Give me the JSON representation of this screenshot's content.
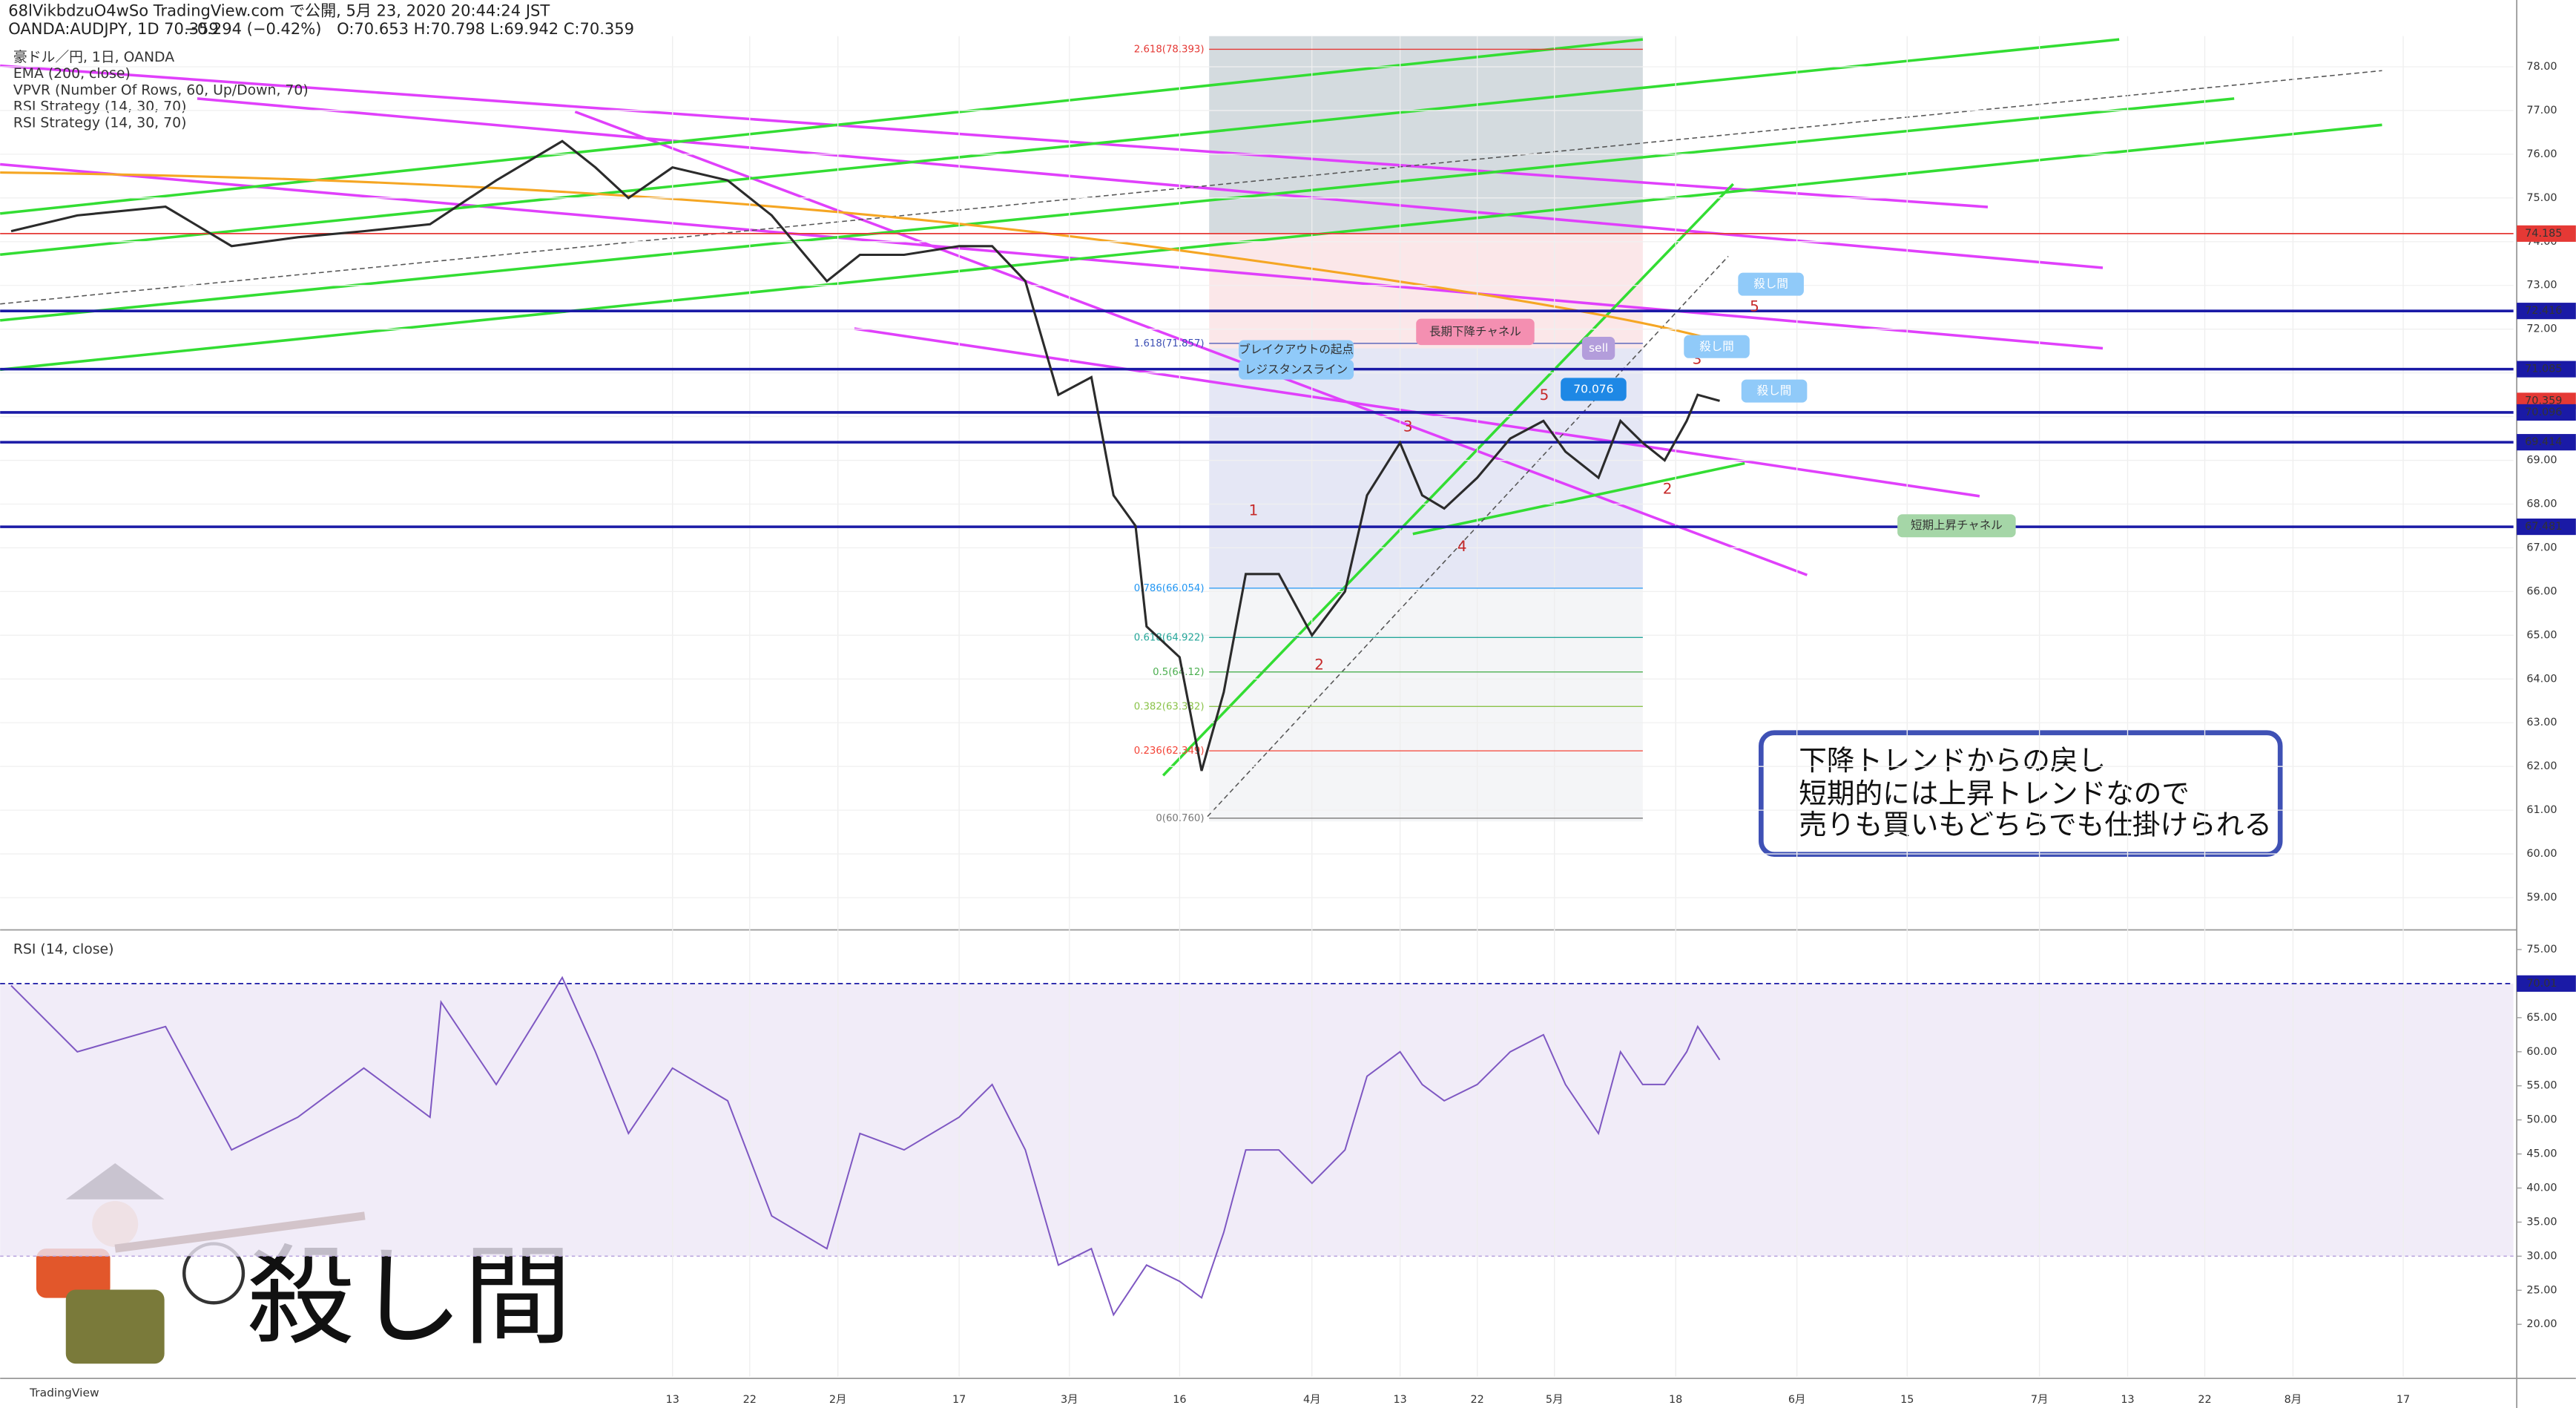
{
  "header": {
    "publisher": "68lVikbdzuO4wSo TradingView.com で公開, 5月 23, 2020 20:44:24 JST",
    "symbol": "OANDA:AUDJPY, 1D 70.359",
    "change": "−0.294 (−0.42%)",
    "ohlc": "O:70.653 H:70.798 L:69.942 C:70.359"
  },
  "indicators": [
    "豪ドル／円, 1日, OANDA",
    "EMA (200, close)",
    "VPVR (Number Of Rows, 60, Up/Down, 70)",
    "RSI Strategy (14, 30, 70)",
    "RSI Strategy (14, 30, 70)"
  ],
  "chart_data": [
    {
      "type": "line",
      "color": "#2b2b2b",
      "x": [
        1,
        7,
        15,
        21,
        27,
        33,
        39,
        45,
        51,
        54,
        57,
        61,
        66,
        70,
        75,
        78,
        82,
        87,
        90,
        93,
        96,
        99,
        101,
        103,
        104,
        107,
        109,
        111,
        113,
        116,
        119,
        122,
        124,
        127,
        129,
        131,
        134,
        137,
        140,
        142,
        145,
        147,
        149,
        151,
        153,
        154,
        156
      ],
      "values": [
        74.24,
        74.6,
        74.8,
        73.9,
        74.1,
        74.24,
        74.4,
        75.4,
        76.3,
        75.7,
        75.0,
        75.7,
        75.4,
        74.6,
        73.1,
        73.7,
        73.7,
        73.9,
        73.9,
        73.1,
        70.5,
        70.9,
        68.2,
        67.5,
        65.2,
        64.5,
        61.9,
        63.7,
        66.4,
        66.4,
        65.0,
        66.0,
        68.2,
        69.4,
        68.2,
        67.9,
        68.6,
        69.5,
        69.9,
        69.2,
        68.6,
        69.9,
        69.4,
        69.0,
        69.9,
        70.5,
        70.359
      ],
      "xlim": [
        0,
        228
      ],
      "xticks": [
        {
          "value": 61,
          "label": "13"
        },
        {
          "value": 68,
          "label": "22"
        },
        {
          "value": 76,
          "label": "2月"
        },
        {
          "value": 87,
          "label": "17"
        },
        {
          "value": 97,
          "label": "3月"
        },
        {
          "value": 107,
          "label": "16"
        },
        {
          "value": 119,
          "label": "4月"
        },
        {
          "value": 127,
          "label": "13"
        },
        {
          "value": 134,
          "label": "22"
        },
        {
          "value": 141,
          "label": "5月"
        },
        {
          "value": 152,
          "label": "18"
        },
        {
          "value": 163,
          "label": "6月"
        },
        {
          "value": 173,
          "label": "15"
        },
        {
          "value": 185,
          "label": "7月"
        },
        {
          "value": 193,
          "label": "13"
        },
        {
          "value": 200,
          "label": "22"
        },
        {
          "value": 208,
          "label": "8月"
        },
        {
          "value": 218,
          "label": "17"
        }
      ],
      "ylim": [
        58.3,
        78.7
      ],
      "yticks": [
        {
          "value": 59,
          "label": "59.00"
        },
        {
          "value": 60,
          "label": "60.00"
        },
        {
          "value": 61,
          "label": "61.00"
        },
        {
          "value": 62,
          "label": "62.00"
        },
        {
          "value": 63,
          "label": "63.00"
        },
        {
          "value": 64,
          "label": "64.00"
        },
        {
          "value": 65,
          "label": "65.00"
        },
        {
          "value": 66,
          "label": "66.00"
        },
        {
          "value": 67,
          "label": "67.00"
        },
        {
          "value": 68,
          "label": "68.00"
        },
        {
          "value": 69,
          "label": "69.00"
        },
        {
          "value": 70,
          "label": "70.00"
        },
        {
          "value": 71,
          "label": "71.00"
        },
        {
          "value": 72,
          "label": "72.00"
        },
        {
          "value": 73,
          "label": "73.00"
        },
        {
          "value": 74,
          "label": "74.00"
        },
        {
          "value": 75,
          "label": "75.00"
        },
        {
          "value": 76,
          "label": "76.00"
        },
        {
          "value": 77,
          "label": "77.00"
        },
        {
          "value": 78,
          "label": "78.00"
        }
      ],
      "grid": true,
      "levels": [
        74.185,
        72.416,
        71.085,
        70.359,
        70.096,
        69.414,
        67.481
      ],
      "level_colors": [
        "#e53935",
        "#1a1aa6",
        "#1a1aa6",
        "#e53935",
        "#1a1aa6",
        "#1a1aa6",
        "#1a1aa6"
      ],
      "fib_labels": [
        "2.618(78.393)",
        "1.618(71.857)",
        "0.786(66.054)",
        "0.618(64.922)",
        "0.5(64.12)",
        "0.382(63.332)",
        "0.236(62.349)",
        "0(60.760)"
      ],
      "wave_labels": [
        "1",
        "2",
        "3",
        "4",
        "5",
        "2",
        "3",
        "5"
      ],
      "callouts": [
        "長期下降チャネル",
        "ブレイクアウトの起点",
        "レジスタンスライン",
        "短期上昇チャネル",
        "sell",
        "殺し間",
        "殺し間",
        "殺し間",
        "70.076"
      ]
    },
    {
      "type": "line",
      "title": "RSI (14, close)",
      "color": "#7e57c2",
      "x": [
        1,
        7,
        15,
        21,
        27,
        33,
        39,
        40,
        45,
        51,
        54,
        57,
        61,
        66,
        70,
        75,
        78,
        82,
        87,
        90,
        93,
        96,
        99,
        101,
        104,
        107,
        109,
        111,
        113,
        116,
        119,
        122,
        124,
        127,
        129,
        131,
        134,
        137,
        140,
        142,
        145,
        147,
        149,
        151,
        153,
        154,
        156
      ],
      "values": [
        69.7,
        60,
        63.7,
        45.6,
        50.4,
        57.6,
        50.4,
        67.3,
        55.2,
        70.9,
        60,
        48,
        57.6,
        52.8,
        35.9,
        31.1,
        48,
        45.6,
        50.4,
        55.2,
        45.6,
        28.7,
        31.1,
        21.4,
        28.7,
        26.3,
        23.9,
        33.5,
        45.6,
        45.6,
        40.7,
        45.6,
        56.4,
        60,
        55.2,
        52.8,
        55.2,
        60,
        62.5,
        55.2,
        48,
        60,
        55.2,
        55.2,
        60,
        63.7,
        58.8
      ],
      "ylim": [
        12.3,
        77.4
      ],
      "yticks": [
        {
          "value": 20,
          "label": "20.00"
        },
        {
          "value": 25,
          "label": "25.00"
        },
        {
          "value": 30,
          "label": "30.00"
        },
        {
          "value": 35,
          "label": "35.00"
        },
        {
          "value": 40,
          "label": "40.00"
        },
        {
          "value": 45,
          "label": "45.00"
        },
        {
          "value": 50,
          "label": "50.00"
        },
        {
          "value": 55,
          "label": "55.00"
        },
        {
          "value": 60,
          "label": "60.00"
        },
        {
          "value": 65,
          "label": "65.00"
        },
        {
          "value": 70,
          "label": "70.00"
        },
        {
          "value": 75,
          "label": "75.00"
        }
      ],
      "band": [
        30,
        70
      ],
      "level_label": 70.01
    }
  ],
  "note": {
    "lines": [
      "下降トレンドからの戻し",
      "短期的には上昇トレンドなので",
      "売りも買いもどちらでも仕掛けられる"
    ]
  },
  "logo": {
    "text": "殺し間"
  },
  "footer": {
    "brand": "TradingView"
  }
}
